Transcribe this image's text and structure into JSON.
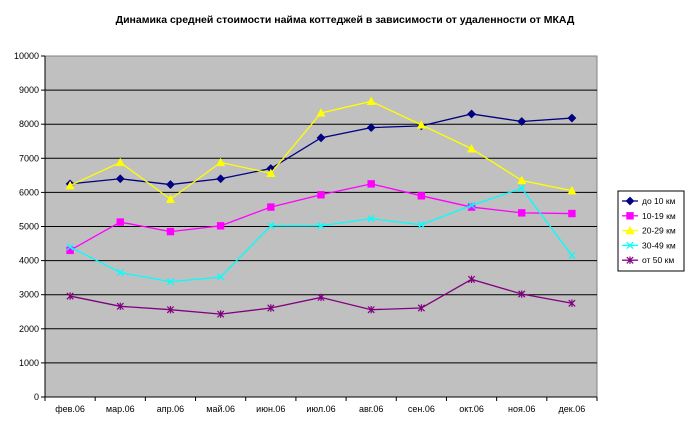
{
  "chart_data": {
    "type": "line",
    "title": "Динамика средней стоимости найма коттеджей в зависимости от удаленности от МКАД",
    "categories": [
      "фев.06",
      "мар.06",
      "апр.06",
      "май.06",
      "июн.06",
      "июл.06",
      "авг.06",
      "сен.06",
      "окт.06",
      "ноя.06",
      "дек.06"
    ],
    "ylim": [
      0,
      10000
    ],
    "yticks": [
      0,
      1000,
      2000,
      3000,
      4000,
      5000,
      6000,
      7000,
      8000,
      9000,
      10000
    ],
    "grid": true,
    "plot_background": "#c0c0c0",
    "legend_position": "right",
    "series": [
      {
        "name": "до 10 км",
        "color": "#000080",
        "marker": "diamond",
        "values": [
          6250,
          6400,
          6230,
          6400,
          6700,
          7600,
          7900,
          7950,
          8300,
          8080,
          8180
        ]
      },
      {
        "name": "10-19 км",
        "color": "#ff00ff",
        "marker": "square",
        "values": [
          4300,
          5130,
          4850,
          5020,
          5570,
          5930,
          6250,
          5900,
          5570,
          5400,
          5380
        ]
      },
      {
        "name": "20-29 км",
        "color": "#ffff00",
        "marker": "triangle",
        "values": [
          6200,
          6880,
          5800,
          6880,
          6560,
          8330,
          8670,
          7980,
          7280,
          6350,
          6050
        ]
      },
      {
        "name": "30-49 км",
        "color": "#00ffff",
        "marker": "x",
        "values": [
          4400,
          3650,
          3380,
          3520,
          5020,
          5020,
          5230,
          5050,
          5620,
          6120,
          4150
        ]
      },
      {
        "name": "от 50 км",
        "color": "#800080",
        "marker": "star",
        "values": [
          2960,
          2660,
          2560,
          2430,
          2610,
          2920,
          2560,
          2610,
          3450,
          3020,
          2750
        ]
      }
    ]
  }
}
